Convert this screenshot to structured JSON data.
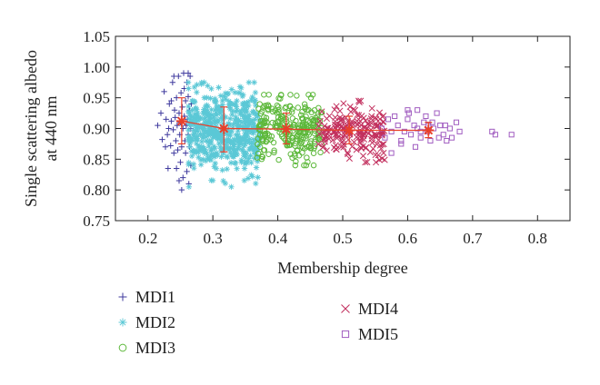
{
  "chart_data": {
    "type": "scatter",
    "xlabel": "Membership degree",
    "ylabel": "Single scattering albedo at 440 nm",
    "ylabel_lines": [
      "Single scattering albedo",
      "at 440 nm"
    ],
    "xlim": [
      0.15,
      0.85
    ],
    "ylim": [
      0.75,
      1.05
    ],
    "xticks": [
      0.2,
      0.3,
      0.4,
      0.5,
      0.6,
      0.7,
      0.8
    ],
    "xtick_labels": [
      "0.2",
      "0.3",
      "0.4",
      "0.5",
      "0.6",
      "0.7",
      "0.8"
    ],
    "yticks": [
      0.75,
      0.8,
      0.85,
      0.9,
      0.95,
      1.0,
      1.05
    ],
    "ytick_labels": [
      "0.75",
      "0.80",
      "0.85",
      "0.90",
      "0.95",
      "1.00",
      "1.05"
    ],
    "grid": false,
    "legend_position": "bottom",
    "series": [
      {
        "name": "MDI1",
        "marker": "plus",
        "color": "#3f3a9e",
        "points": [
          [
            0.215,
            0.905
          ],
          [
            0.22,
            0.925
          ],
          [
            0.222,
            0.882
          ],
          [
            0.225,
            0.96
          ],
          [
            0.228,
            0.915
          ],
          [
            0.23,
            0.89
          ],
          [
            0.231,
            0.835
          ],
          [
            0.233,
            0.94
          ],
          [
            0.235,
            0.872
          ],
          [
            0.236,
            0.912
          ],
          [
            0.238,
            0.975
          ],
          [
            0.239,
            0.898
          ],
          [
            0.24,
            0.86
          ],
          [
            0.241,
            0.93
          ],
          [
            0.242,
            0.918
          ],
          [
            0.243,
            0.88
          ],
          [
            0.244,
            0.95
          ],
          [
            0.245,
            0.905
          ],
          [
            0.246,
            0.865
          ],
          [
            0.247,
            0.985
          ],
          [
            0.248,
            0.925
          ],
          [
            0.249,
            0.89
          ],
          [
            0.25,
            0.845
          ],
          [
            0.25,
            0.91
          ],
          [
            0.251,
            0.958
          ],
          [
            0.252,
            0.87
          ],
          [
            0.253,
            0.935
          ],
          [
            0.254,
            0.9
          ],
          [
            0.254,
            0.82
          ],
          [
            0.255,
            0.99
          ],
          [
            0.256,
            0.92
          ],
          [
            0.257,
            0.88
          ],
          [
            0.258,
            0.945
          ],
          [
            0.258,
            0.86
          ],
          [
            0.259,
            0.905
          ],
          [
            0.26,
            0.975
          ],
          [
            0.26,
            0.83
          ],
          [
            0.261,
            0.915
          ],
          [
            0.262,
            0.89
          ],
          [
            0.262,
            0.952
          ],
          [
            0.263,
            0.81
          ],
          [
            0.264,
            0.93
          ],
          [
            0.264,
            0.87
          ],
          [
            0.265,
            0.985
          ],
          [
            0.266,
            0.9
          ],
          [
            0.266,
            0.84
          ],
          [
            0.267,
            0.94
          ],
          [
            0.252,
            0.8
          ],
          [
            0.248,
            0.815
          ],
          [
            0.244,
            0.835
          ],
          [
            0.236,
            0.945
          ],
          [
            0.232,
            0.9
          ],
          [
            0.227,
            0.87
          ],
          [
            0.24,
            0.985
          ],
          [
            0.256,
            0.965
          ],
          [
            0.262,
            0.99
          ]
        ]
      },
      {
        "name": "MDI2",
        "marker": "asterisk",
        "color": "#5bc8d6",
        "points": []
      },
      {
        "name": "MDI3",
        "marker": "circle",
        "color": "#5cb83a",
        "points": []
      },
      {
        "name": "MDI4",
        "marker": "cross",
        "color": "#c2305e",
        "points": []
      },
      {
        "name": "MDI5",
        "marker": "square",
        "color": "#a05cc0",
        "points": [
          [
            0.56,
            0.9
          ],
          [
            0.565,
            0.885
          ],
          [
            0.57,
            0.915
          ],
          [
            0.575,
            0.895
          ],
          [
            0.58,
            0.92
          ],
          [
            0.585,
            0.905
          ],
          [
            0.59,
            0.88
          ],
          [
            0.595,
            0.895
          ],
          [
            0.6,
            0.915
          ],
          [
            0.602,
            0.925
          ],
          [
            0.605,
            0.89
          ],
          [
            0.61,
            0.905
          ],
          [
            0.612,
            0.87
          ],
          [
            0.615,
            0.9
          ],
          [
            0.62,
            0.885
          ],
          [
            0.625,
            0.91
          ],
          [
            0.628,
            0.92
          ],
          [
            0.63,
            0.895
          ],
          [
            0.632,
            0.905
          ],
          [
            0.635,
            0.88
          ],
          [
            0.638,
            0.91
          ],
          [
            0.64,
            0.9
          ],
          [
            0.645,
            0.925
          ],
          [
            0.648,
            0.885
          ],
          [
            0.65,
            0.905
          ],
          [
            0.655,
            0.89
          ],
          [
            0.66,
            0.88
          ],
          [
            0.665,
            0.9
          ],
          [
            0.668,
            0.885
          ],
          [
            0.675,
            0.91
          ],
          [
            0.68,
            0.895
          ],
          [
            0.59,
            0.875
          ],
          [
            0.575,
            0.86
          ],
          [
            0.6,
            0.93
          ],
          [
            0.615,
            0.93
          ],
          [
            0.658,
            0.905
          ],
          [
            0.73,
            0.895
          ],
          [
            0.735,
            0.89
          ],
          [
            0.76,
            0.89
          ],
          [
            0.62,
            0.895
          ]
        ]
      }
    ],
    "mean_line": {
      "color": "#e8402a",
      "points": [
        {
          "x": 0.252,
          "y": 0.912,
          "low": 0.875,
          "high": 0.95
        },
        {
          "x": 0.317,
          "y": 0.9,
          "low": 0.862,
          "high": 0.935
        },
        {
          "x": 0.413,
          "y": 0.899,
          "low": 0.875,
          "high": 0.925
        },
        {
          "x": 0.51,
          "y": 0.897,
          "low": 0.875,
          "high": 0.92
        },
        {
          "x": 0.632,
          "y": 0.897,
          "low": 0.885,
          "high": 0.91
        }
      ]
    },
    "legend": [
      {
        "name": "MDI1",
        "marker": "plus",
        "color": "#3f3a9e"
      },
      {
        "name": "MDI2",
        "marker": "asterisk",
        "color": "#5bc8d6"
      },
      {
        "name": "MDI3",
        "marker": "circle",
        "color": "#5cb83a"
      },
      {
        "name": "MDI4",
        "marker": "cross",
        "color": "#c2305e"
      },
      {
        "name": "MDI5",
        "marker": "square",
        "color": "#a05cc0"
      }
    ]
  }
}
